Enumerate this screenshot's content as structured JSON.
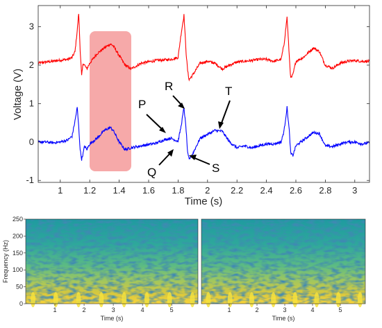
{
  "chart_data": [
    {
      "type": "line",
      "xlabel": "Time (s)",
      "ylabel": "Voltage (V)",
      "xlim": [
        0.85,
        3.1
      ],
      "ylim": [
        -1.05,
        3.55
      ],
      "xticks": [
        1,
        1.2,
        1.4,
        1.6,
        1.8,
        2,
        2.2,
        2.4,
        2.6,
        2.8,
        3
      ],
      "yticks": [
        -1,
        0,
        1,
        2,
        3
      ],
      "grid": false,
      "series": [
        {
          "color": "#ff0000",
          "x": [
            0.85,
            0.9,
            0.95,
            1.0,
            1.05,
            1.08,
            1.1,
            1.115,
            1.125,
            1.135,
            1.145,
            1.155,
            1.165,
            1.18,
            1.2,
            1.25,
            1.3,
            1.34,
            1.36,
            1.4,
            1.44,
            1.48,
            1.55,
            1.65,
            1.75,
            1.8,
            1.82,
            1.84,
            1.855,
            1.865,
            1.875,
            1.9,
            1.95,
            2.0,
            2.05,
            2.1,
            2.15,
            2.2,
            2.25,
            2.3,
            2.35,
            2.4,
            2.45,
            2.5,
            2.52,
            2.54,
            2.555,
            2.565,
            2.58,
            2.6,
            2.65,
            2.72,
            2.76,
            2.8,
            2.85,
            2.9,
            2.95,
            3.0,
            3.05,
            3.1
          ],
          "y": [
            2.05,
            2.08,
            2.1,
            2.13,
            2.15,
            2.2,
            2.35,
            2.9,
            3.35,
            2.4,
            1.72,
            2.05,
            2.0,
            1.9,
            2.05,
            2.3,
            2.45,
            2.55,
            2.5,
            2.25,
            2.0,
            1.9,
            2.05,
            2.12,
            2.15,
            2.2,
            2.8,
            3.3,
            2.3,
            1.85,
            1.62,
            1.75,
            2.05,
            2.1,
            2.05,
            1.9,
            2.0,
            2.08,
            2.1,
            2.12,
            2.15,
            2.15,
            2.1,
            2.15,
            2.55,
            3.25,
            2.25,
            1.65,
            1.75,
            2.1,
            2.2,
            2.45,
            2.35,
            2.0,
            1.92,
            2.05,
            2.1,
            2.12,
            2.1,
            2.1
          ]
        },
        {
          "color": "#0000ff",
          "x": [
            0.85,
            0.9,
            0.95,
            1.0,
            1.05,
            1.08,
            1.1,
            1.115,
            1.125,
            1.135,
            1.145,
            1.155,
            1.165,
            1.18,
            1.2,
            1.25,
            1.3,
            1.34,
            1.36,
            1.4,
            1.44,
            1.48,
            1.55,
            1.65,
            1.7,
            1.75,
            1.8,
            1.82,
            1.84,
            1.855,
            1.865,
            1.875,
            1.9,
            1.95,
            2.0,
            2.05,
            2.1,
            2.15,
            2.2,
            2.25,
            2.3,
            2.35,
            2.4,
            2.45,
            2.5,
            2.52,
            2.54,
            2.555,
            2.565,
            2.58,
            2.6,
            2.65,
            2.72,
            2.76,
            2.8,
            2.85,
            2.9,
            2.95,
            3.0,
            3.05,
            3.1
          ],
          "y": [
            0.0,
            0.0,
            -0.02,
            0.0,
            0.05,
            0.15,
            0.55,
            0.9,
            0.4,
            -0.2,
            -0.45,
            -0.3,
            -0.1,
            -0.2,
            -0.05,
            0.1,
            0.3,
            0.38,
            0.3,
            0.0,
            -0.2,
            -0.15,
            -0.1,
            -0.03,
            0.05,
            0.1,
            0.02,
            0.4,
            0.9,
            0.3,
            -0.3,
            -0.45,
            -0.3,
            0.1,
            0.2,
            0.3,
            0.28,
            0.0,
            -0.15,
            -0.1,
            -0.15,
            -0.1,
            -0.05,
            -0.05,
            0.0,
            0.3,
            0.9,
            0.3,
            -0.3,
            -0.35,
            -0.1,
            0.05,
            0.25,
            0.22,
            -0.1,
            -0.12,
            -0.05,
            0.0,
            0.0,
            -0.05,
            -0.02
          ]
        }
      ],
      "annotations": [
        "P",
        "R",
        "T",
        "Q",
        "S"
      ]
    },
    {
      "type": "heatmap",
      "xlabel": "Time (s)",
      "ylabel": "Frequency (Hz)",
      "xticks": [
        1,
        2,
        3,
        4,
        5
      ],
      "yticks": [
        0,
        50,
        100,
        150,
        200,
        250
      ],
      "xlim": [
        0,
        5.9
      ],
      "ylim": [
        0,
        250
      ]
    },
    {
      "type": "heatmap",
      "xlabel": "Time (s)",
      "xticks": [
        1,
        2,
        3,
        4,
        5
      ],
      "xlim": [
        0,
        5.9
      ],
      "ylim": [
        0,
        250
      ]
    }
  ],
  "labels": {
    "top_xlabel": "Time (s)",
    "top_ylabel": "Voltage (V)",
    "spec_xlabel_left": "Time (s)",
    "spec_xlabel_right": "Time (s)",
    "spec_ylabel": "Frequency (Hz)",
    "wave_p": "P",
    "wave_r": "R",
    "wave_t": "T",
    "wave_q": "Q",
    "wave_s": "S"
  },
  "colors": {
    "highlight": "#f59a9a",
    "ecg_top": "#ff0000",
    "ecg_bottom": "#0000ff"
  }
}
